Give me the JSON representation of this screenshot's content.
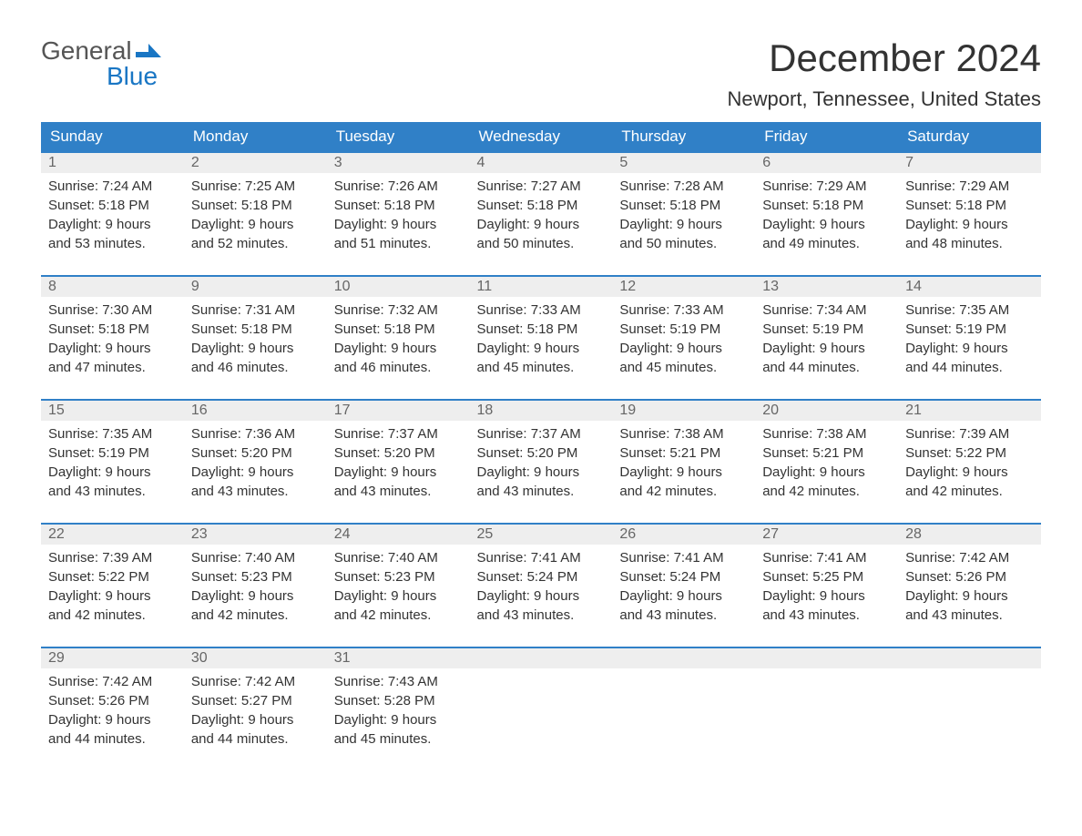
{
  "logo": {
    "text1": "General",
    "text2": "Blue",
    "colors": {
      "text1": "#555555",
      "text2": "#1976c4",
      "icon": "#1976c4"
    }
  },
  "title": "December 2024",
  "location": "Newport, Tennessee, United States",
  "headerBgColor": "#3080c7",
  "headerTextColor": "#ffffff",
  "dayNumberBgColor": "#eeeeee",
  "borderColor": "#3080c7",
  "dayHeaders": [
    "Sunday",
    "Monday",
    "Tuesday",
    "Wednesday",
    "Thursday",
    "Friday",
    "Saturday"
  ],
  "weeks": [
    [
      {
        "day": "1",
        "sunrise": "Sunrise: 7:24 AM",
        "sunset": "Sunset: 5:18 PM",
        "daylight1": "Daylight: 9 hours",
        "daylight2": "and 53 minutes."
      },
      {
        "day": "2",
        "sunrise": "Sunrise: 7:25 AM",
        "sunset": "Sunset: 5:18 PM",
        "daylight1": "Daylight: 9 hours",
        "daylight2": "and 52 minutes."
      },
      {
        "day": "3",
        "sunrise": "Sunrise: 7:26 AM",
        "sunset": "Sunset: 5:18 PM",
        "daylight1": "Daylight: 9 hours",
        "daylight2": "and 51 minutes."
      },
      {
        "day": "4",
        "sunrise": "Sunrise: 7:27 AM",
        "sunset": "Sunset: 5:18 PM",
        "daylight1": "Daylight: 9 hours",
        "daylight2": "and 50 minutes."
      },
      {
        "day": "5",
        "sunrise": "Sunrise: 7:28 AM",
        "sunset": "Sunset: 5:18 PM",
        "daylight1": "Daylight: 9 hours",
        "daylight2": "and 50 minutes."
      },
      {
        "day": "6",
        "sunrise": "Sunrise: 7:29 AM",
        "sunset": "Sunset: 5:18 PM",
        "daylight1": "Daylight: 9 hours",
        "daylight2": "and 49 minutes."
      },
      {
        "day": "7",
        "sunrise": "Sunrise: 7:29 AM",
        "sunset": "Sunset: 5:18 PM",
        "daylight1": "Daylight: 9 hours",
        "daylight2": "and 48 minutes."
      }
    ],
    [
      {
        "day": "8",
        "sunrise": "Sunrise: 7:30 AM",
        "sunset": "Sunset: 5:18 PM",
        "daylight1": "Daylight: 9 hours",
        "daylight2": "and 47 minutes."
      },
      {
        "day": "9",
        "sunrise": "Sunrise: 7:31 AM",
        "sunset": "Sunset: 5:18 PM",
        "daylight1": "Daylight: 9 hours",
        "daylight2": "and 46 minutes."
      },
      {
        "day": "10",
        "sunrise": "Sunrise: 7:32 AM",
        "sunset": "Sunset: 5:18 PM",
        "daylight1": "Daylight: 9 hours",
        "daylight2": "and 46 minutes."
      },
      {
        "day": "11",
        "sunrise": "Sunrise: 7:33 AM",
        "sunset": "Sunset: 5:18 PM",
        "daylight1": "Daylight: 9 hours",
        "daylight2": "and 45 minutes."
      },
      {
        "day": "12",
        "sunrise": "Sunrise: 7:33 AM",
        "sunset": "Sunset: 5:19 PM",
        "daylight1": "Daylight: 9 hours",
        "daylight2": "and 45 minutes."
      },
      {
        "day": "13",
        "sunrise": "Sunrise: 7:34 AM",
        "sunset": "Sunset: 5:19 PM",
        "daylight1": "Daylight: 9 hours",
        "daylight2": "and 44 minutes."
      },
      {
        "day": "14",
        "sunrise": "Sunrise: 7:35 AM",
        "sunset": "Sunset: 5:19 PM",
        "daylight1": "Daylight: 9 hours",
        "daylight2": "and 44 minutes."
      }
    ],
    [
      {
        "day": "15",
        "sunrise": "Sunrise: 7:35 AM",
        "sunset": "Sunset: 5:19 PM",
        "daylight1": "Daylight: 9 hours",
        "daylight2": "and 43 minutes."
      },
      {
        "day": "16",
        "sunrise": "Sunrise: 7:36 AM",
        "sunset": "Sunset: 5:20 PM",
        "daylight1": "Daylight: 9 hours",
        "daylight2": "and 43 minutes."
      },
      {
        "day": "17",
        "sunrise": "Sunrise: 7:37 AM",
        "sunset": "Sunset: 5:20 PM",
        "daylight1": "Daylight: 9 hours",
        "daylight2": "and 43 minutes."
      },
      {
        "day": "18",
        "sunrise": "Sunrise: 7:37 AM",
        "sunset": "Sunset: 5:20 PM",
        "daylight1": "Daylight: 9 hours",
        "daylight2": "and 43 minutes."
      },
      {
        "day": "19",
        "sunrise": "Sunrise: 7:38 AM",
        "sunset": "Sunset: 5:21 PM",
        "daylight1": "Daylight: 9 hours",
        "daylight2": "and 42 minutes."
      },
      {
        "day": "20",
        "sunrise": "Sunrise: 7:38 AM",
        "sunset": "Sunset: 5:21 PM",
        "daylight1": "Daylight: 9 hours",
        "daylight2": "and 42 minutes."
      },
      {
        "day": "21",
        "sunrise": "Sunrise: 7:39 AM",
        "sunset": "Sunset: 5:22 PM",
        "daylight1": "Daylight: 9 hours",
        "daylight2": "and 42 minutes."
      }
    ],
    [
      {
        "day": "22",
        "sunrise": "Sunrise: 7:39 AM",
        "sunset": "Sunset: 5:22 PM",
        "daylight1": "Daylight: 9 hours",
        "daylight2": "and 42 minutes."
      },
      {
        "day": "23",
        "sunrise": "Sunrise: 7:40 AM",
        "sunset": "Sunset: 5:23 PM",
        "daylight1": "Daylight: 9 hours",
        "daylight2": "and 42 minutes."
      },
      {
        "day": "24",
        "sunrise": "Sunrise: 7:40 AM",
        "sunset": "Sunset: 5:23 PM",
        "daylight1": "Daylight: 9 hours",
        "daylight2": "and 42 minutes."
      },
      {
        "day": "25",
        "sunrise": "Sunrise: 7:41 AM",
        "sunset": "Sunset: 5:24 PM",
        "daylight1": "Daylight: 9 hours",
        "daylight2": "and 43 minutes."
      },
      {
        "day": "26",
        "sunrise": "Sunrise: 7:41 AM",
        "sunset": "Sunset: 5:24 PM",
        "daylight1": "Daylight: 9 hours",
        "daylight2": "and 43 minutes."
      },
      {
        "day": "27",
        "sunrise": "Sunrise: 7:41 AM",
        "sunset": "Sunset: 5:25 PM",
        "daylight1": "Daylight: 9 hours",
        "daylight2": "and 43 minutes."
      },
      {
        "day": "28",
        "sunrise": "Sunrise: 7:42 AM",
        "sunset": "Sunset: 5:26 PM",
        "daylight1": "Daylight: 9 hours",
        "daylight2": "and 43 minutes."
      }
    ],
    [
      {
        "day": "29",
        "sunrise": "Sunrise: 7:42 AM",
        "sunset": "Sunset: 5:26 PM",
        "daylight1": "Daylight: 9 hours",
        "daylight2": "and 44 minutes."
      },
      {
        "day": "30",
        "sunrise": "Sunrise: 7:42 AM",
        "sunset": "Sunset: 5:27 PM",
        "daylight1": "Daylight: 9 hours",
        "daylight2": "and 44 minutes."
      },
      {
        "day": "31",
        "sunrise": "Sunrise: 7:43 AM",
        "sunset": "Sunset: 5:28 PM",
        "daylight1": "Daylight: 9 hours",
        "daylight2": "and 45 minutes."
      },
      {
        "empty": true
      },
      {
        "empty": true
      },
      {
        "empty": true
      },
      {
        "empty": true
      }
    ]
  ]
}
